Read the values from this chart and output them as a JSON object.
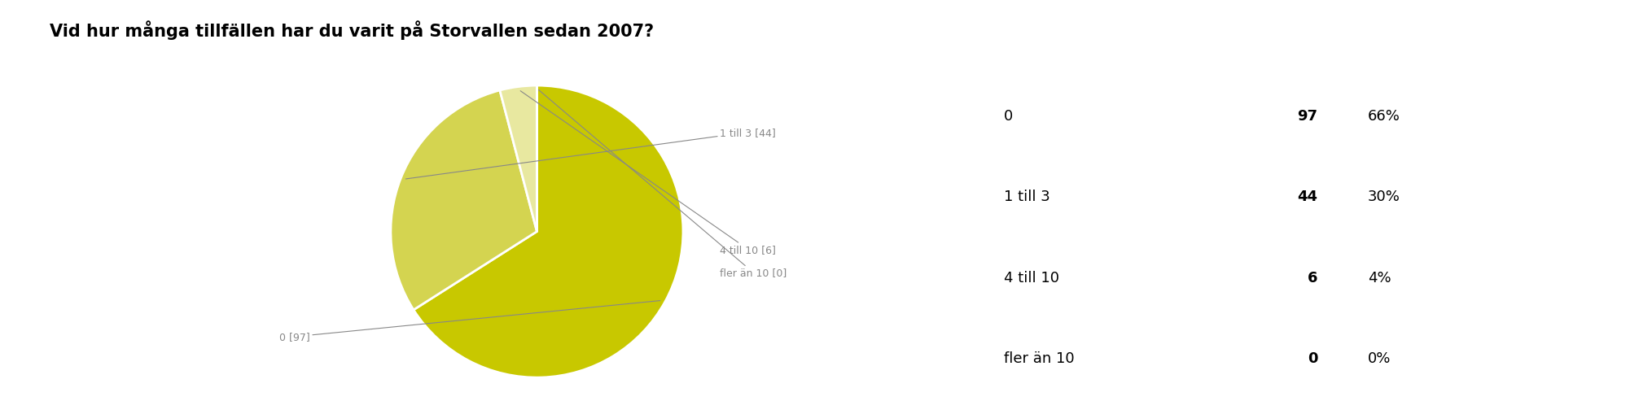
{
  "title": "Vid hur många tillfällen har du varit på Storvallen sedan 2007?",
  "slices": [
    97,
    44,
    6,
    0.001
  ],
  "labels": [
    "0",
    "1 till 3",
    "4 till 10",
    "fler än 10"
  ],
  "counts": [
    97,
    44,
    6,
    0
  ],
  "percents": [
    "66%",
    "30%",
    "4%",
    "0%"
  ],
  "pie_labels": [
    "0 [97]",
    "1 till 3 [44]",
    "4 till 10 [6]",
    "fler än 10 [0]"
  ],
  "colors": [
    "#c8c800",
    "#d4d450",
    "#e8e8a0",
    "#f0f0d0"
  ],
  "title_fontsize": 15,
  "label_fontsize": 9,
  "table_label_fontsize": 13,
  "table_count_fontsize": 13,
  "background_color": "#ffffff"
}
